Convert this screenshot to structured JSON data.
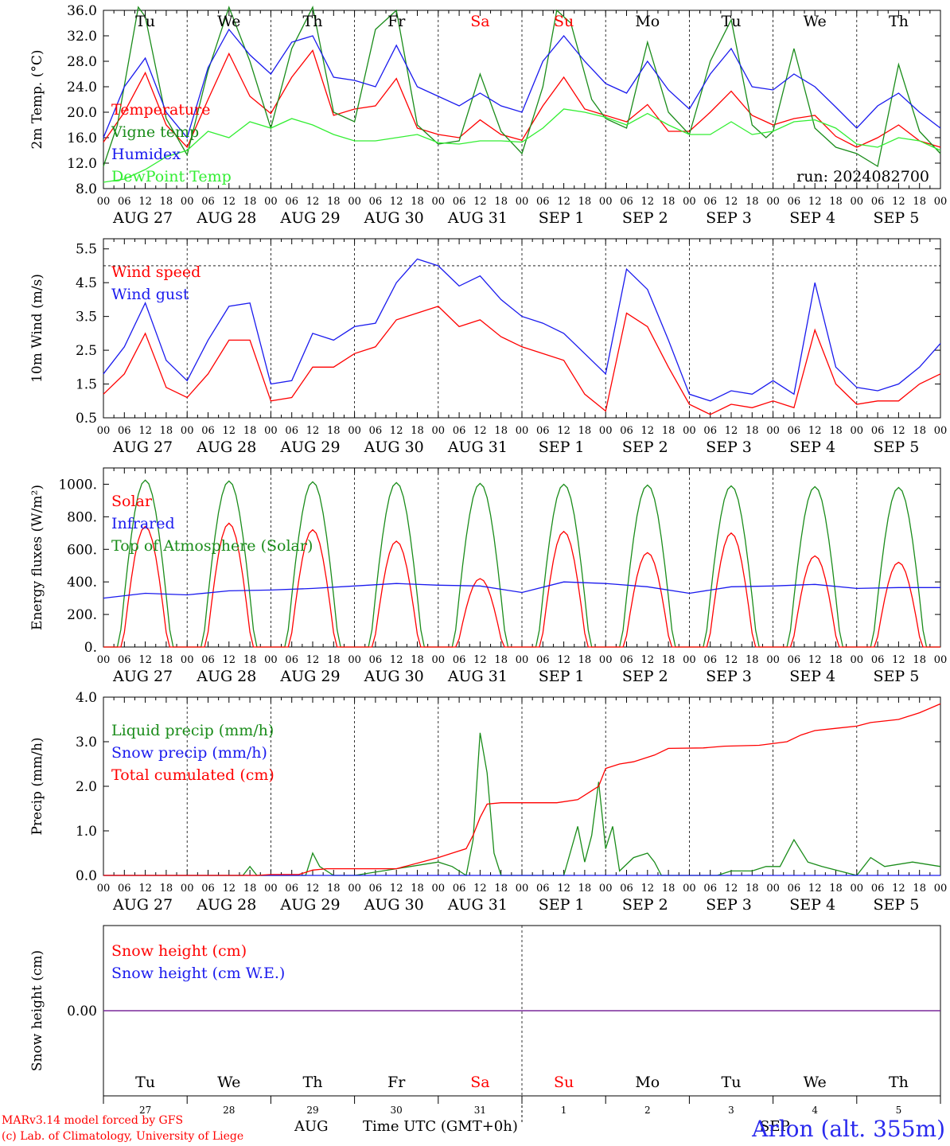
{
  "chart_data": [
    {
      "type": "line",
      "ylabel": "2m Temp. (°C)",
      "ylim": [
        8.0,
        36.0
      ],
      "yticks": [
        "8.0",
        "12.0",
        "16.0",
        "20.0",
        "24.0",
        "28.0",
        "32.0",
        "36.0"
      ],
      "run_label": "run: 2024082700",
      "x_hours": [
        0,
        24,
        48,
        72,
        96,
        120,
        144,
        168,
        192,
        216,
        240
      ],
      "series": [
        {
          "name": "Temperature",
          "color": "#ff0000",
          "x": [
            0,
            6,
            12,
            18,
            24,
            30,
            36,
            42,
            48,
            54,
            60,
            66,
            72,
            78,
            84,
            90,
            96,
            102,
            108,
            114,
            120,
            126,
            132,
            138,
            144,
            150,
            156,
            162,
            168,
            174,
            180,
            186,
            192,
            198,
            204,
            210,
            216,
            222,
            228,
            234,
            240
          ],
          "y": [
            15.3,
            20,
            26.2,
            18,
            14.5,
            22,
            29.2,
            22.5,
            19.8,
            25.5,
            29.7,
            19.5,
            20.5,
            21,
            25.3,
            17.5,
            16.5,
            16,
            18.8,
            16.5,
            15.6,
            21,
            25.5,
            20.5,
            19.5,
            18.5,
            21.2,
            17,
            17,
            20,
            23.3,
            19.5,
            18,
            19,
            19.5,
            16.2,
            14.5,
            16,
            18,
            15.5,
            14.5
          ]
        },
        {
          "name": "Vigne temp",
          "color": "#1a8c1a",
          "x": [
            0,
            4,
            10,
            12,
            18,
            24,
            30,
            36,
            42,
            48,
            54,
            60,
            66,
            72,
            78,
            84,
            90,
            96,
            102,
            108,
            114,
            120,
            126,
            130,
            134,
            140,
            144,
            150,
            156,
            162,
            168,
            174,
            180,
            186,
            190,
            192,
            198,
            204,
            210,
            216,
            222,
            228,
            234,
            240
          ],
          "y": [
            11.5,
            18,
            36.5,
            35,
            19,
            13.3,
            26.5,
            36.5,
            28,
            17.5,
            30,
            36.5,
            20,
            18.5,
            33,
            36,
            18,
            15,
            15.5,
            26,
            17,
            13.5,
            24,
            36,
            34,
            22,
            19,
            17.5,
            31,
            20,
            16.5,
            28,
            34.5,
            18,
            16,
            17,
            30,
            17.5,
            14.5,
            13.5,
            11.5,
            27.5,
            17,
            13.5
          ]
        },
        {
          "name": "Humidex",
          "color": "#1a1aee",
          "x": [
            0,
            6,
            12,
            18,
            24,
            30,
            36,
            42,
            48,
            54,
            60,
            66,
            72,
            78,
            84,
            90,
            96,
            102,
            108,
            114,
            120,
            126,
            132,
            138,
            144,
            150,
            156,
            162,
            168,
            174,
            180,
            186,
            192,
            198,
            204,
            210,
            216,
            222,
            228,
            234,
            240
          ],
          "y": [
            16,
            24,
            28.5,
            20,
            16,
            27,
            33,
            29,
            26,
            31,
            32,
            25.5,
            25,
            24,
            30.5,
            24,
            22.5,
            21,
            23,
            21,
            20,
            28,
            32,
            28,
            24.5,
            23,
            28,
            23.5,
            20.5,
            26,
            30,
            24,
            23.5,
            26,
            24,
            20.8,
            17.5,
            21,
            23,
            20,
            17.5
          ]
        },
        {
          "name": "DewPoint Temp",
          "color": "#33ee33",
          "x": [
            0,
            6,
            12,
            18,
            24,
            30,
            36,
            42,
            48,
            54,
            60,
            66,
            72,
            78,
            84,
            90,
            96,
            102,
            108,
            114,
            120,
            126,
            132,
            138,
            144,
            150,
            156,
            162,
            168,
            174,
            180,
            186,
            192,
            198,
            204,
            210,
            216,
            222,
            228,
            234,
            240
          ],
          "y": [
            9,
            9.5,
            11,
            13,
            14,
            17,
            16,
            18.5,
            17.5,
            19,
            18,
            16.5,
            15.5,
            15.5,
            16,
            16.5,
            15.2,
            15,
            15.5,
            15.5,
            15.3,
            17.5,
            20.5,
            20,
            19.2,
            18,
            19.8,
            18,
            16.5,
            16.5,
            18.5,
            16.5,
            17,
            18.5,
            18.8,
            17.5,
            15,
            14.5,
            16,
            15.5,
            14
          ]
        }
      ]
    },
    {
      "type": "line",
      "ylabel": "10m Wind (m/s)",
      "ylim": [
        0.5,
        5.8
      ],
      "yticks": [
        "0.5",
        "1.5",
        "2.5",
        "3.5",
        "4.5",
        "5.5"
      ],
      "reference_line": 5.0,
      "series": [
        {
          "name": "Wind speed",
          "color": "#ff0000",
          "x": [
            0,
            6,
            12,
            18,
            24,
            30,
            36,
            42,
            48,
            54,
            60,
            66,
            72,
            78,
            84,
            90,
            96,
            102,
            108,
            114,
            120,
            126,
            132,
            138,
            144,
            150,
            156,
            162,
            168,
            174,
            180,
            186,
            192,
            198,
            204,
            210,
            216,
            222,
            228,
            234,
            240
          ],
          "y": [
            1.2,
            1.8,
            3.0,
            1.4,
            1.1,
            1.8,
            2.8,
            2.8,
            1.0,
            1.1,
            2.0,
            2.0,
            2.4,
            2.6,
            3.4,
            3.6,
            3.8,
            3.2,
            3.4,
            2.9,
            2.6,
            2.4,
            2.2,
            1.2,
            0.7,
            3.6,
            3.2,
            2.0,
            0.9,
            0.6,
            0.9,
            0.8,
            1.0,
            0.8,
            3.1,
            1.5,
            0.9,
            1.0,
            1.0,
            1.5,
            1.8
          ]
        },
        {
          "name": "Wind gust",
          "color": "#1a1aee",
          "x": [
            0,
            6,
            12,
            18,
            24,
            30,
            36,
            42,
            48,
            54,
            60,
            66,
            72,
            78,
            84,
            90,
            96,
            102,
            108,
            114,
            120,
            126,
            132,
            138,
            144,
            150,
            156,
            162,
            168,
            174,
            180,
            186,
            192,
            198,
            204,
            210,
            216,
            222,
            228,
            234,
            240
          ],
          "y": [
            1.8,
            2.6,
            3.9,
            2.2,
            1.6,
            2.8,
            3.8,
            3.9,
            1.5,
            1.6,
            3.0,
            2.8,
            3.2,
            3.3,
            4.5,
            5.2,
            5.0,
            4.4,
            4.7,
            4.0,
            3.5,
            3.3,
            3.0,
            2.4,
            1.8,
            4.9,
            4.3,
            2.8,
            1.2,
            1.0,
            1.3,
            1.2,
            1.6,
            1.2,
            4.5,
            2.0,
            1.4,
            1.3,
            1.5,
            2.0,
            2.7
          ]
        }
      ]
    },
    {
      "type": "line",
      "ylabel": "Energy fluxes (W/m²)",
      "ylim": [
        0,
        1100
      ],
      "yticks": [
        "0.",
        "200.",
        "400.",
        "600.",
        "800.",
        "1000."
      ],
      "series": [
        {
          "name": "Solar",
          "color": "#ff0000",
          "daily_peaks": [
            740,
            760,
            720,
            650,
            420,
            710,
            580,
            700,
            560,
            520
          ]
        },
        {
          "name": "Infrared",
          "color": "#1a1aee",
          "x": [
            0,
            12,
            24,
            36,
            48,
            60,
            72,
            84,
            96,
            108,
            120,
            132,
            144,
            156,
            168,
            180,
            192,
            204,
            216,
            228,
            240
          ],
          "y": [
            300,
            330,
            320,
            345,
            350,
            360,
            375,
            390,
            380,
            375,
            335,
            400,
            390,
            370,
            330,
            370,
            375,
            385,
            360,
            365,
            365
          ]
        },
        {
          "name": "Top of Atmosphere (Solar)",
          "color": "#1a8c1a",
          "daily_peaks": [
            1025,
            1020,
            1015,
            1010,
            1005,
            1000,
            995,
            990,
            985,
            980
          ]
        }
      ]
    },
    {
      "type": "line",
      "ylabel": "Precip (mm/h)",
      "ylim": [
        0.0,
        4.0
      ],
      "yticks": [
        "0.0",
        "1.0",
        "2.0",
        "3.0",
        "4.0"
      ],
      "series": [
        {
          "name": "Liquid precip (mm/h)",
          "color": "#1a8c1a",
          "x": [
            0,
            40,
            42,
            44,
            48,
            58,
            60,
            62,
            66,
            72,
            96,
            100,
            104,
            106,
            108,
            110,
            112,
            114,
            132,
            136,
            138,
            140,
            142,
            144,
            146,
            148,
            152,
            156,
            158,
            160,
            164,
            168,
            176,
            180,
            186,
            190,
            194,
            198,
            202,
            206,
            216,
            220,
            224,
            232,
            240
          ],
          "y": [
            0,
            0,
            0.2,
            0,
            0,
            0,
            0.5,
            0.2,
            0,
            0,
            0.3,
            0.2,
            0,
            0.8,
            3.2,
            2.3,
            0.5,
            0,
            0,
            1.1,
            0.3,
            0.9,
            2.1,
            0.6,
            1.1,
            0.1,
            0.4,
            0.5,
            0.3,
            0,
            0,
            0,
            0,
            0.1,
            0.1,
            0.2,
            0.2,
            0.8,
            0.3,
            0.2,
            0,
            0.4,
            0.2,
            0.3,
            0.2
          ]
        },
        {
          "name": "Snow precip (mm/h)",
          "color": "#1a1aee",
          "x": [
            0,
            240
          ],
          "y": [
            0,
            0
          ]
        },
        {
          "name": "Total cumulated (cm)",
          "color": "#ff0000",
          "x": [
            0,
            44,
            48,
            56,
            60,
            64,
            84,
            96,
            100,
            104,
            106,
            108,
            110,
            114,
            130,
            136,
            140,
            142,
            144,
            148,
            152,
            158,
            162,
            172,
            178,
            188,
            196,
            200,
            204,
            210,
            216,
            220,
            228,
            234,
            240
          ],
          "y": [
            0,
            0,
            0.02,
            0.02,
            0.12,
            0.15,
            0.15,
            0.4,
            0.5,
            0.6,
            0.9,
            1.3,
            1.6,
            1.63,
            1.63,
            1.7,
            1.9,
            2.0,
            2.4,
            2.5,
            2.55,
            2.7,
            2.85,
            2.86,
            2.9,
            2.92,
            3.0,
            3.15,
            3.25,
            3.3,
            3.35,
            3.43,
            3.5,
            3.65,
            3.85
          ]
        }
      ]
    },
    {
      "type": "line",
      "ylabel": "Snow height (cm)",
      "ytick": "0.00",
      "series": [
        {
          "name": "Snow height (cm)",
          "color": "#ff0000",
          "x": [
            0,
            240
          ],
          "y": [
            0,
            0
          ]
        },
        {
          "name": "Snow height (cm W.E.)",
          "color": "#1a1aee",
          "x": [
            0,
            240
          ],
          "y": [
            0,
            0
          ]
        }
      ]
    }
  ],
  "axis": {
    "hour_ticks": [
      "00",
      "06",
      "12",
      "18"
    ],
    "date_labels": [
      "AUG 27",
      "AUG 28",
      "AUG 29",
      "AUG 30",
      "AUG 31",
      "SEP  1",
      "SEP  2",
      "SEP  3",
      "SEP  4",
      "SEP  5"
    ],
    "weekdays": [
      "Tu",
      "We",
      "Th",
      "Fr",
      "Sa",
      "Su",
      "Mo",
      "Tu",
      "We",
      "Th"
    ],
    "weekday_colors": [
      "#000000",
      "#000000",
      "#000000",
      "#000000",
      "#ff0000",
      "#ff0000",
      "#000000",
      "#000000",
      "#000000",
      "#000000"
    ],
    "day_numbers": [
      "27",
      "28",
      "29",
      "30",
      "31",
      "1",
      "2",
      "3",
      "4",
      "5"
    ],
    "month_aug": "AUG",
    "month_sep": "SEP",
    "time_label": "Time UTC (GMT+0h)"
  },
  "footer": {
    "credit_1": "MARv3.14 model forced by GFS",
    "credit_2": "(c) Lab. of Climatology, University of Liege",
    "station": "Arlon (alt. 355m)"
  }
}
